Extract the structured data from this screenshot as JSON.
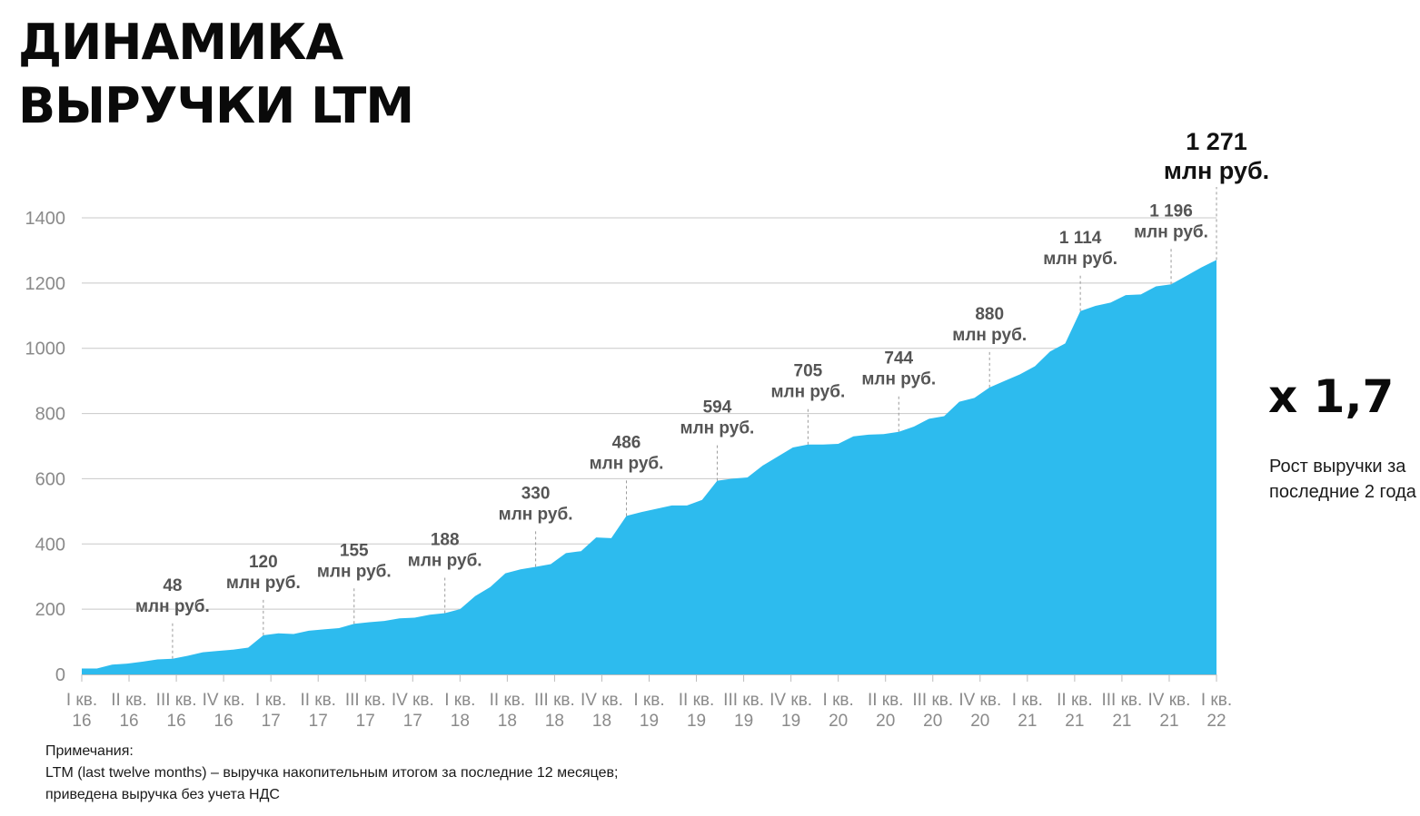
{
  "title": {
    "line1": "ДИНАМИКА",
    "line2": "ВЫРУЧКИ LTM"
  },
  "highlight": {
    "multiplier": "х 1,7",
    "caption": "Рост выручки за последние 2 года"
  },
  "notes": {
    "heading": "Примечания:",
    "line1": "LTM (last twelve months) – выручка накопительным итогом за последние 12 месяцев;",
    "line2": "приведена выручка без учета НДС"
  },
  "colors": {
    "area": "#2dbbee",
    "grid": "#c8c8c8",
    "axis_text": "#8a8a8a",
    "label_text": "#555555",
    "final_label_text": "#111111"
  },
  "chart_data": {
    "type": "area",
    "ylim": [
      0,
      1400
    ],
    "yticks": [
      0,
      200,
      400,
      600,
      800,
      1000,
      1200,
      1400
    ],
    "grid": true,
    "categories": [
      {
        "q": "I кв.",
        "y": "16"
      },
      {
        "q": "II кв.",
        "y": "16"
      },
      {
        "q": "III кв.",
        "y": "16"
      },
      {
        "q": "IV кв.",
        "y": "16"
      },
      {
        "q": "I кв.",
        "y": "17"
      },
      {
        "q": "II кв.",
        "y": "17"
      },
      {
        "q": "III кв.",
        "y": "17"
      },
      {
        "q": "IV кв.",
        "y": "17"
      },
      {
        "q": "I кв.",
        "y": "18"
      },
      {
        "q": "II кв.",
        "y": "18"
      },
      {
        "q": "III кв.",
        "y": "18"
      },
      {
        "q": "IV кв.",
        "y": "18"
      },
      {
        "q": "I кв.",
        "y": "19"
      },
      {
        "q": "II кв.",
        "y": "19"
      },
      {
        "q": "III кв.",
        "y": "19"
      },
      {
        "q": "IV кв.",
        "y": "19"
      },
      {
        "q": "I кв.",
        "y": "20"
      },
      {
        "q": "II кв.",
        "y": "20"
      },
      {
        "q": "III кв.",
        "y": "20"
      },
      {
        "q": "IV кв.",
        "y": "20"
      },
      {
        "q": "I кв.",
        "y": "21"
      },
      {
        "q": "II кв.",
        "y": "21"
      },
      {
        "q": "III кв.",
        "y": "21"
      },
      {
        "q": "IV кв.",
        "y": "21"
      },
      {
        "q": "I кв.",
        "y": "22"
      }
    ],
    "monthly_values": [
      18,
      18,
      30,
      33,
      39,
      46,
      48,
      57,
      68,
      72,
      76,
      82,
      120,
      126,
      124,
      134,
      138,
      142,
      155,
      160,
      164,
      172,
      174,
      183,
      188,
      200,
      240,
      268,
      310,
      322,
      330,
      338,
      372,
      378,
      420,
      418,
      486,
      498,
      508,
      518,
      518,
      535,
      594,
      600,
      604,
      640,
      668,
      696,
      705,
      705,
      707,
      730,
      735,
      737,
      744,
      760,
      784,
      792,
      836,
      848,
      880,
      900,
      920,
      945,
      990,
      1015,
      1114,
      1130,
      1140,
      1163,
      1165,
      1190,
      1196,
      1222,
      1248,
      1271
    ],
    "callouts": [
      {
        "index": 6,
        "value": "48",
        "unit": "млн руб."
      },
      {
        "index": 12,
        "value": "120",
        "unit": "млн руб."
      },
      {
        "index": 18,
        "value": "155",
        "unit": "млн руб."
      },
      {
        "index": 24,
        "value": "188",
        "unit": "млн руб."
      },
      {
        "index": 30,
        "value": "330",
        "unit": "млн руб."
      },
      {
        "index": 36,
        "value": "486",
        "unit": "млн руб."
      },
      {
        "index": 42,
        "value": "594",
        "unit": "млн руб."
      },
      {
        "index": 48,
        "value": "705",
        "unit": "млн руб."
      },
      {
        "index": 54,
        "value": "744",
        "unit": "млн руб."
      },
      {
        "index": 60,
        "value": "880",
        "unit": "млн руб."
      },
      {
        "index": 66,
        "value": "1 114",
        "unit": "млн руб."
      },
      {
        "index": 72,
        "value": "1 196",
        "unit": "млн руб."
      },
      {
        "index": 75,
        "value": "1 271",
        "unit": "млн руб.",
        "final": true
      }
    ]
  }
}
